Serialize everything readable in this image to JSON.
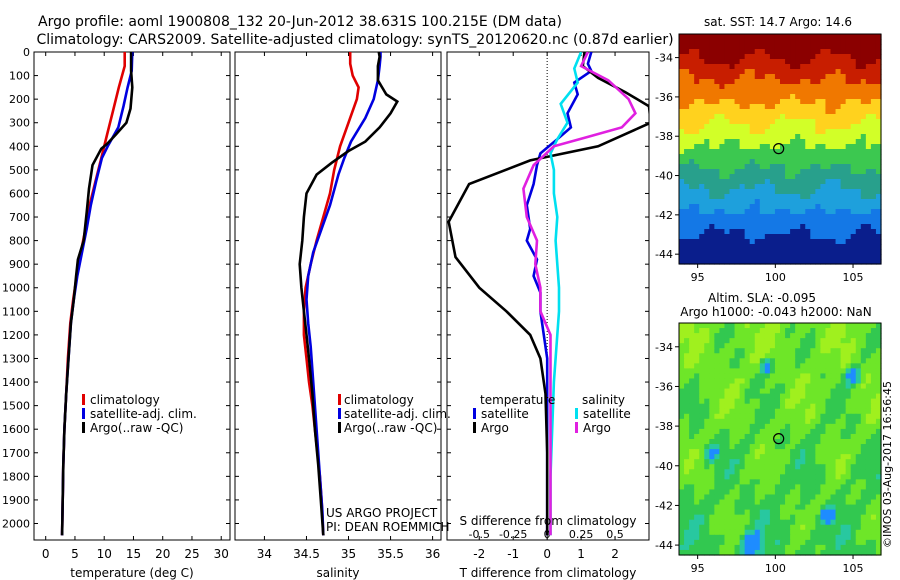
{
  "header": {
    "title_line1": "Argo profile: aoml 1900808_132 20-Jun-2012 38.631S 100.215E (DM data)",
    "title_line2": "Climatology: CARS2009. Satellite-adjusted climatology: synTS_20120620.nc (0.87d earlier)"
  },
  "maps": {
    "sst_title": "sat. SST: 14.7 Argo: 14.6",
    "sla_title_line1": "Altim. SLA: -0.095",
    "sla_title_line2": "Argo h1000: -0.043 h2000: NaN",
    "float_position": {
      "lon": 100.215,
      "lat": -38.631
    },
    "lon_range": [
      93.8,
      106.8
    ],
    "lat_range": [
      -44.5,
      -32.8
    ],
    "lon_ticks": [
      "95",
      "100",
      "105"
    ],
    "lat_ticks": [
      "-34",
      "-36",
      "-38",
      "-40",
      "-42",
      "-44"
    ],
    "sst_colors": [
      "#8b0000",
      "#c81e00",
      "#f07800",
      "#ffd21e",
      "#d2ff28",
      "#3cc850",
      "#28a08c",
      "#1ea0dc",
      "#1478e6",
      "#0a1e8c"
    ],
    "sla_colors": [
      "#1e8cff",
      "#28c8a0",
      "#32c850",
      "#6ee628",
      "#a0f01e",
      "#dcf014",
      "#ffd214"
    ]
  },
  "footer": {
    "credit_line1": "US ARGO PROJECT",
    "credit_line2": "PI: DEAN ROEMMICH",
    "stamp": "©IMOS 03-Aug-2017 16:56:45"
  },
  "colors": {
    "climatology": "#e00000",
    "satellite": "#0000e0",
    "argo": "#000000",
    "sal_satellite": "#00e0f0",
    "sal_argo": "#e020e0"
  },
  "chart_data": [
    {
      "type": "line",
      "id": "temperature",
      "xlabel": "temperature (deg C)",
      "ylabel": "",
      "xlim": [
        -2,
        31.5
      ],
      "ylim": [
        2070,
        0
      ],
      "x_ticks": [
        0,
        5,
        10,
        15,
        20,
        25,
        30
      ],
      "y_ticks": [
        0,
        100,
        200,
        300,
        400,
        500,
        600,
        700,
        800,
        900,
        1000,
        1100,
        1200,
        1300,
        1400,
        1500,
        1600,
        1700,
        1800,
        1900,
        2000
      ],
      "legend": [
        "climatology",
        "satellite-adj. clim.",
        "Argo(..raw -QC)"
      ],
      "legend_position": "lower-right",
      "series": [
        {
          "name": "climatology",
          "color_key": "climatology",
          "points": [
            [
              13.5,
              0
            ],
            [
              13.5,
              60
            ],
            [
              12.5,
              150
            ],
            [
              11.5,
              250
            ],
            [
              10.5,
              350
            ],
            [
              9.5,
              450
            ],
            [
              8.5,
              550
            ],
            [
              7.5,
              650
            ],
            [
              6.8,
              750
            ],
            [
              6,
              850
            ],
            [
              5.3,
              950
            ],
            [
              4.7,
              1050
            ],
            [
              4.2,
              1150
            ],
            [
              3.8,
              1300
            ],
            [
              3.5,
              1450
            ],
            [
              3.2,
              1600
            ],
            [
              3,
              1750
            ],
            [
              2.9,
              1900
            ],
            [
              2.8,
              2050
            ]
          ]
        },
        {
          "name": "satellite-adj. clim.",
          "color_key": "satellite",
          "points": [
            [
              14.8,
              0
            ],
            [
              14.7,
              80
            ],
            [
              14,
              150
            ],
            [
              13.3,
              230
            ],
            [
              12.4,
              320
            ],
            [
              10.6,
              400
            ],
            [
              9.6,
              450
            ],
            [
              8.6,
              550
            ],
            [
              7.7,
              650
            ],
            [
              7,
              750
            ],
            [
              6.2,
              850
            ],
            [
              5.4,
              950
            ],
            [
              4.8,
              1050
            ],
            [
              4.3,
              1150
            ],
            [
              3.9,
              1300
            ],
            [
              3.5,
              1450
            ],
            [
              3.2,
              1600
            ],
            [
              3,
              1750
            ],
            [
              2.9,
              1900
            ],
            [
              2.8,
              2050
            ]
          ]
        },
        {
          "name": "Argo(..raw -QC)",
          "color_key": "argo",
          "points": [
            [
              14.6,
              0
            ],
            [
              14.6,
              80
            ],
            [
              14.8,
              150
            ],
            [
              14.5,
              240
            ],
            [
              13.8,
              300
            ],
            [
              12,
              350
            ],
            [
              10.5,
              390
            ],
            [
              9.5,
              410
            ],
            [
              8,
              480
            ],
            [
              7.4,
              580
            ],
            [
              7,
              680
            ],
            [
              6.5,
              800
            ],
            [
              5.5,
              880
            ],
            [
              5.2,
              950
            ],
            [
              4.8,
              1050
            ],
            [
              4.3,
              1150
            ],
            [
              3.9,
              1300
            ],
            [
              3.5,
              1450
            ],
            [
              3.2,
              1600
            ],
            [
              3,
              1750
            ],
            [
              2.9,
              1900
            ],
            [
              2.8,
              2050
            ]
          ]
        }
      ]
    },
    {
      "type": "line",
      "id": "salinity",
      "xlabel": "salinity",
      "ylabel": "",
      "xlim": [
        33.65,
        36.1
      ],
      "ylim": [
        2070,
        0
      ],
      "x_ticks": [
        34,
        34.5,
        35,
        35.5,
        36
      ],
      "tick_labels": [
        "34",
        "34.5",
        "35",
        "35.5",
        "36"
      ],
      "legend": [
        "climatology",
        "satellite-adj. clim.",
        "Argo(..raw -QC)"
      ],
      "legend_position": "lower-right",
      "series": [
        {
          "name": "climatology",
          "color_key": "climatology",
          "points": [
            [
              35.02,
              0
            ],
            [
              35.02,
              50
            ],
            [
              35.05,
              100
            ],
            [
              35.12,
              150
            ],
            [
              35.1,
              200
            ],
            [
              35,
              300
            ],
            [
              34.9,
              400
            ],
            [
              34.83,
              500
            ],
            [
              34.78,
              600
            ],
            [
              34.7,
              700
            ],
            [
              34.62,
              800
            ],
            [
              34.55,
              900
            ],
            [
              34.49,
              1000
            ],
            [
              34.47,
              1100
            ],
            [
              34.47,
              1200
            ],
            [
              34.5,
              1300
            ],
            [
              34.53,
              1400
            ],
            [
              34.57,
              1500
            ],
            [
              34.6,
              1600
            ],
            [
              34.63,
              1700
            ],
            [
              34.66,
              1800
            ],
            [
              34.68,
              1900
            ],
            [
              34.7,
              2050
            ]
          ]
        },
        {
          "name": "satellite-adj. clim.",
          "color_key": "satellite",
          "points": [
            [
              35.38,
              0
            ],
            [
              35.38,
              20
            ],
            [
              35.37,
              60
            ],
            [
              35.35,
              120
            ],
            [
              35.3,
              200
            ],
            [
              35.2,
              280
            ],
            [
              35.03,
              380
            ],
            [
              34.95,
              450
            ],
            [
              34.88,
              520
            ],
            [
              34.78,
              650
            ],
            [
              34.68,
              750
            ],
            [
              34.58,
              850
            ],
            [
              34.52,
              950
            ],
            [
              34.5,
              1050
            ],
            [
              34.52,
              1150
            ],
            [
              34.55,
              1250
            ],
            [
              34.57,
              1350
            ],
            [
              34.6,
              1500
            ],
            [
              34.63,
              1650
            ],
            [
              34.66,
              1800
            ],
            [
              34.69,
              1950
            ],
            [
              34.7,
              2050
            ]
          ]
        },
        {
          "name": "Argo(..raw -QC)",
          "color_key": "argo",
          "points": [
            [
              35.36,
              0
            ],
            [
              35.37,
              20
            ],
            [
              35.35,
              60
            ],
            [
              35.35,
              120
            ],
            [
              35.45,
              180
            ],
            [
              35.58,
              210
            ],
            [
              35.5,
              260
            ],
            [
              35.37,
              320
            ],
            [
              35.2,
              380
            ],
            [
              35,
              420
            ],
            [
              34.8,
              470
            ],
            [
              34.62,
              520
            ],
            [
              34.5,
              600
            ],
            [
              34.47,
              700
            ],
            [
              34.45,
              800
            ],
            [
              34.42,
              900
            ],
            [
              34.44,
              1000
            ],
            [
              34.47,
              1100
            ],
            [
              34.5,
              1200
            ],
            [
              34.53,
              1300
            ],
            [
              34.57,
              1450
            ],
            [
              34.6,
              1600
            ],
            [
              34.64,
              1750
            ],
            [
              34.67,
              1900
            ],
            [
              34.7,
              2050
            ]
          ]
        }
      ]
    },
    {
      "type": "line",
      "id": "difference",
      "xlabel": "T difference from climatology",
      "top_label": "S difference from climatology",
      "ylabel": "",
      "xlim": [
        -2.95,
        3.0
      ],
      "ylim": [
        2070,
        0
      ],
      "x_ticks": [
        -2,
        -1,
        0,
        1,
        2
      ],
      "top_ticks": [
        -0.5,
        -0.25,
        0,
        0.25,
        0.5
      ],
      "top_tick_labels": [
        "-0.5",
        "-0.25",
        "0",
        "0.25",
        "0.5"
      ],
      "legend_titles": [
        "temperature",
        "salinity"
      ],
      "legend": [
        "satellite",
        "Argo",
        "satellite",
        "Argo"
      ],
      "legend_position": "lower-right",
      "series": [
        {
          "name": "satellite",
          "color_key": "satellite",
          "points": [
            [
              1.3,
              0
            ],
            [
              1.2,
              50
            ],
            [
              1.3,
              80
            ],
            [
              0.8,
              130
            ],
            [
              0.9,
              180
            ],
            [
              0.6,
              260
            ],
            [
              0.7,
              320
            ],
            [
              0.3,
              370
            ],
            [
              -0.2,
              430
            ],
            [
              -0.3,
              480
            ],
            [
              -0.4,
              560
            ],
            [
              -0.6,
              650
            ],
            [
              -0.5,
              750
            ],
            [
              -0.6,
              800
            ],
            [
              -0.3,
              880
            ],
            [
              -0.4,
              950
            ],
            [
              -0.2,
              1020
            ],
            [
              -0.2,
              1100
            ],
            [
              -0.1,
              1200
            ],
            [
              0,
              1300
            ],
            [
              0,
              1400
            ],
            [
              0,
              1600
            ],
            [
              0,
              1800
            ],
            [
              0,
              1950
            ],
            [
              0,
              2050
            ]
          ]
        },
        {
          "name": "Argo",
          "color_key": "argo",
          "points": [
            [
              1.1,
              0
            ],
            [
              1.05,
              60
            ],
            [
              1.5,
              110
            ],
            [
              2.3,
              170
            ],
            [
              3,
              230
            ],
            [
              3.05,
              300
            ],
            [
              1.5,
              400
            ],
            [
              -0.5,
              460
            ],
            [
              -2.3,
              560
            ],
            [
              -2.9,
              720
            ],
            [
              -2.7,
              870
            ],
            [
              -2,
              1000
            ],
            [
              -1.2,
              1100
            ],
            [
              -0.5,
              1200
            ],
            [
              -0.2,
              1300
            ],
            [
              -0.05,
              1450
            ],
            [
              0,
              1700
            ],
            [
              0,
              1950
            ],
            [
              0,
              2050
            ]
          ]
        },
        {
          "name": "satellite",
          "color_key": "sal_satellite",
          "points": [
            [
              1.0,
              0
            ],
            [
              0.8,
              70
            ],
            [
              0.9,
              130
            ],
            [
              0.4,
              220
            ],
            [
              0.6,
              300
            ],
            [
              0.3,
              370
            ],
            [
              0.1,
              430
            ],
            [
              0.2,
              500
            ],
            [
              0.2,
              600
            ],
            [
              0.3,
              700
            ],
            [
              0.25,
              800
            ],
            [
              0.3,
              900
            ],
            [
              0.35,
              1000
            ],
            [
              0.35,
              1100
            ],
            [
              0.3,
              1200
            ],
            [
              0.2,
              1400
            ],
            [
              0.15,
              1600
            ],
            [
              0.1,
              1800
            ],
            [
              0.1,
              2050
            ]
          ]
        },
        {
          "name": "Argo",
          "color_key": "sal_argo",
          "points": [
            [
              1.2,
              0
            ],
            [
              1.0,
              60
            ],
            [
              1.8,
              120
            ],
            [
              2.4,
              200
            ],
            [
              2.6,
              260
            ],
            [
              2.2,
              320
            ],
            [
              1.2,
              360
            ],
            [
              0.2,
              400
            ],
            [
              -0.4,
              480
            ],
            [
              -0.7,
              580
            ],
            [
              -0.6,
              700
            ],
            [
              -0.3,
              800
            ],
            [
              -0.35,
              900
            ],
            [
              -0.2,
              1000
            ],
            [
              -0.2,
              1100
            ],
            [
              0.1,
              1200
            ],
            [
              0.1,
              1300
            ],
            [
              0.1,
              1500
            ],
            [
              0.1,
              1700
            ],
            [
              0.1,
              1900
            ],
            [
              0.1,
              2050
            ]
          ]
        }
      ]
    }
  ]
}
